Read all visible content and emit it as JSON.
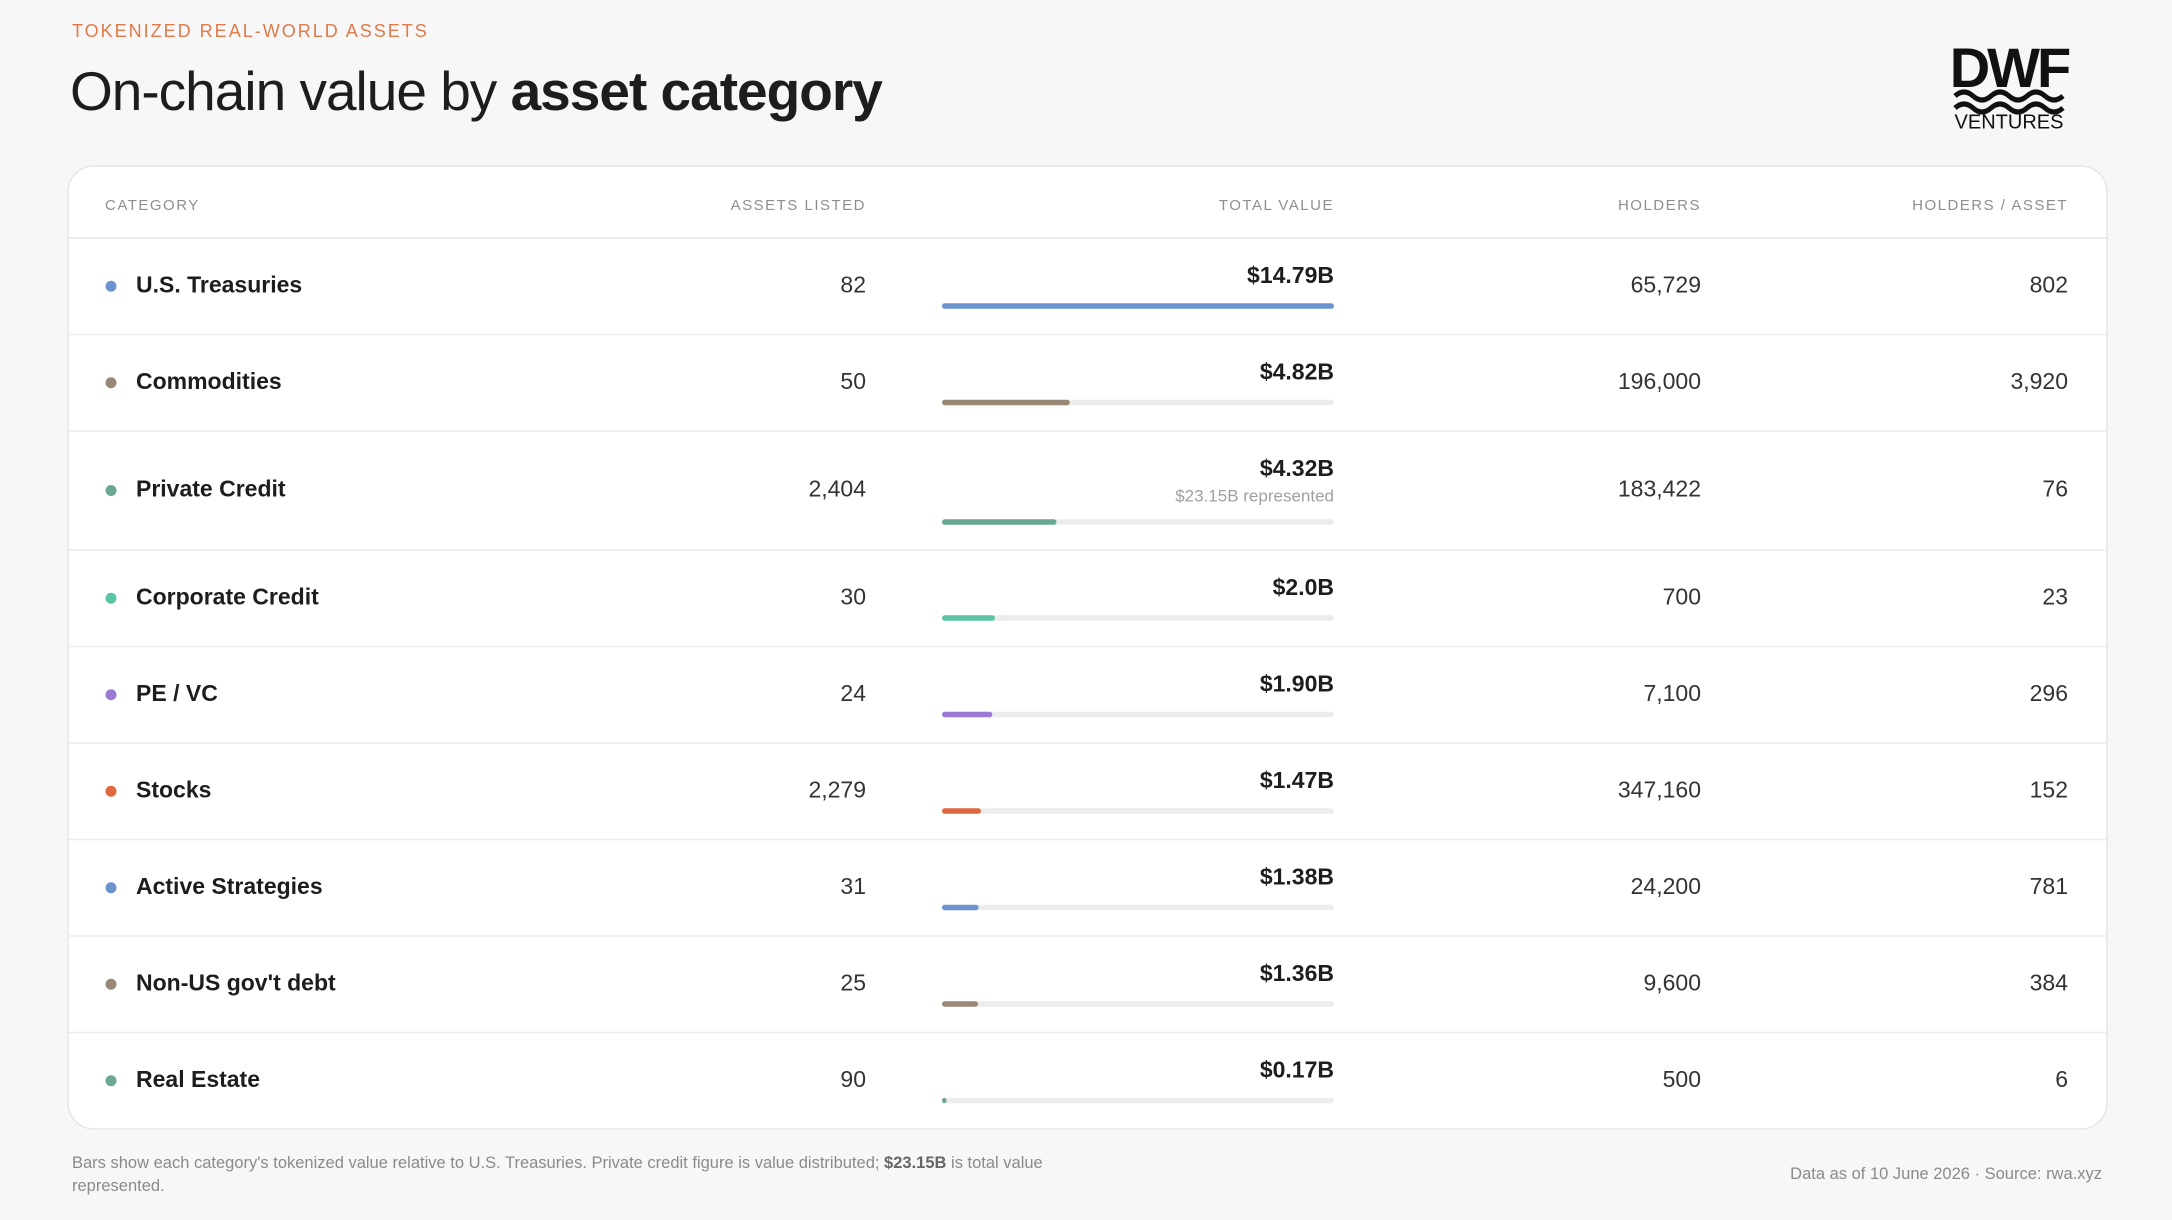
{
  "header": {
    "kicker": "TOKENIZED REAL-WORLD ASSETS",
    "title_regular": "On-chain value by ",
    "title_bold": "asset category"
  },
  "logo": {
    "name": "DWF",
    "sub": "VENTURES"
  },
  "table": {
    "columns": [
      "CATEGORY",
      "ASSETS LISTED",
      "TOTAL VALUE",
      "HOLDERS",
      "HOLDERS / ASSET"
    ],
    "rows": [
      {
        "name": "U.S. Treasuries",
        "color": "#6b93cf",
        "assets": "82",
        "total_value": {
          "value": 14.79,
          "label": "$14.79B"
        },
        "holders": "65,729",
        "per_asset": "802"
      },
      {
        "name": "Commodities",
        "color": "#9a8876",
        "assets": "50",
        "total_value": {
          "value": 4.82,
          "label": "$4.82B"
        },
        "holders": "196,000",
        "per_asset": "3,920"
      },
      {
        "name": "Private Credit",
        "color": "#6aa892",
        "assets": "2,404",
        "total_value": {
          "value": 4.32,
          "label": "$4.32B"
        },
        "note": "$23.15B represented",
        "holders": "183,422",
        "per_asset": "76"
      },
      {
        "name": "Corporate Credit",
        "color": "#5cc4a6",
        "assets": "30",
        "total_value": {
          "value": 2.0,
          "label": "$2.0B"
        },
        "holders": "700",
        "per_asset": "23"
      },
      {
        "name": "PE / VC",
        "color": "#9b7ad6",
        "assets": "24",
        "total_value": {
          "value": 1.9,
          "label": "$1.90B"
        },
        "holders": "7,100",
        "per_asset": "296"
      },
      {
        "name": "Stocks",
        "color": "#e0683e",
        "assets": "2,279",
        "total_value": {
          "value": 1.47,
          "label": "$1.47B"
        },
        "holders": "347,160",
        "per_asset": "152"
      },
      {
        "name": "Active Strategies",
        "color": "#6b93cf",
        "assets": "31",
        "total_value": {
          "value": 1.38,
          "label": "$1.38B"
        },
        "holders": "24,200",
        "per_asset": "781"
      },
      {
        "name": "Non-US gov't debt",
        "color": "#9a8876",
        "assets": "25",
        "total_value": {
          "value": 1.36,
          "label": "$1.36B"
        },
        "holders": "9,600",
        "per_asset": "384"
      },
      {
        "name": "Real Estate",
        "color": "#6aa892",
        "assets": "90",
        "total_value": {
          "value": 0.17,
          "label": "$0.17B"
        },
        "holders": "500",
        "per_asset": "6"
      }
    ]
  },
  "footer": {
    "note_start": "Bars show each category's tokenized value relative to U.S. Treasuries. Private credit figure is value distributed; ",
    "note_bold": "$23.15B",
    "note_end": " is total value represented.",
    "source": "Data as of 10 June 2026 · Source: rwa.xyz"
  }
}
